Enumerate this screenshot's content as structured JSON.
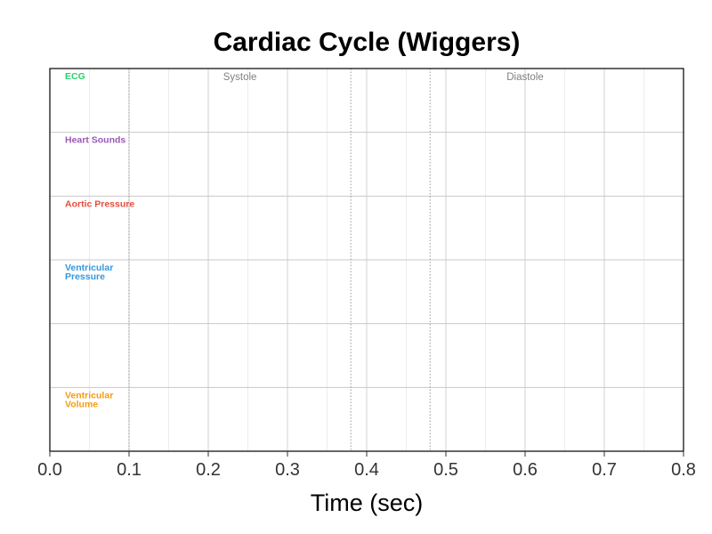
{
  "chart_data": {
    "type": "line",
    "title": "Cardiac Cycle (Wiggers)",
    "xlabel": "Time (sec)",
    "ylabel": "",
    "xlim": [
      0,
      0.8
    ],
    "x_ticks": [
      0,
      0.1,
      0.2,
      0.3,
      0.4,
      0.5,
      0.6,
      0.7,
      0.8
    ],
    "x_tick_labels": [
      "0.0",
      "0.1",
      "0.2",
      "0.3",
      "0.4",
      "0.5",
      "0.6",
      "0.7",
      "0.8"
    ],
    "x_minor_ticks": [
      0.05,
      0.15,
      0.25,
      0.35,
      0.45,
      0.55,
      0.65,
      0.75
    ],
    "grid": true,
    "lanes": [
      {
        "name": "ECG",
        "lines": [
          "ECG"
        ],
        "color": "#2ecc71"
      },
      {
        "name": "Heart Sounds",
        "lines": [
          "Heart Sounds"
        ],
        "color": "#9b59b6"
      },
      {
        "name": "Aortic Pressure",
        "lines": [
          "Aortic Pressure"
        ],
        "color": "#e74c3c"
      },
      {
        "name": "Ventricular Pressure",
        "lines": [
          "Ventricular",
          "Pressure"
        ],
        "color": "#3498db"
      },
      {
        "name": "",
        "lines": [],
        "color": "#000000"
      },
      {
        "name": "Ventricular Volume",
        "lines": [
          "Ventricular",
          "Volume"
        ],
        "color": "#f39c12"
      }
    ],
    "phase_markers": [
      0.1,
      0.38,
      0.48
    ],
    "phase_labels": [
      {
        "text": "Systole",
        "x": 0.24
      },
      {
        "text": "Diastole",
        "x": 0.6
      }
    ],
    "series": []
  }
}
